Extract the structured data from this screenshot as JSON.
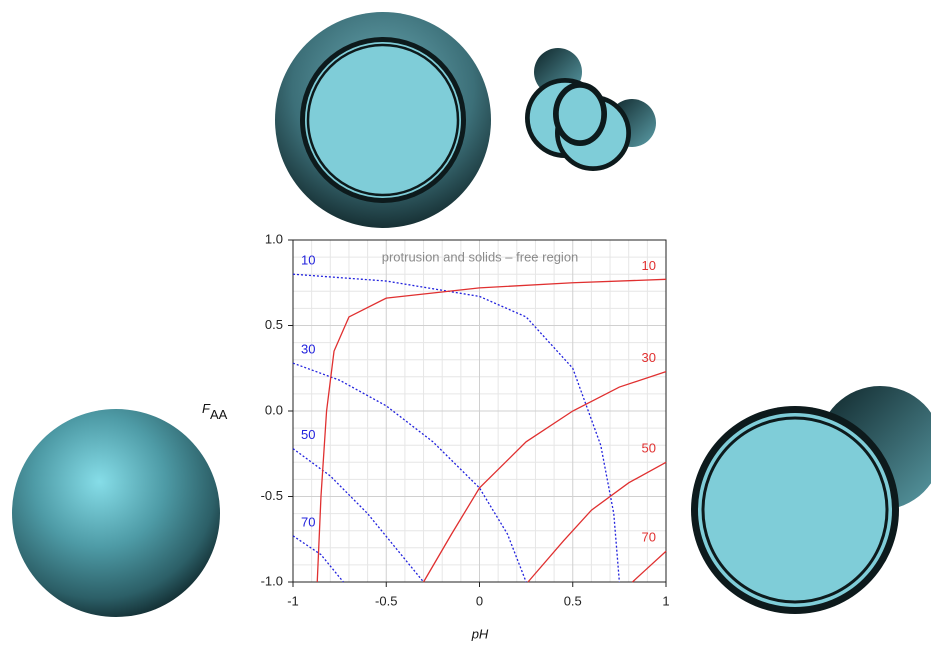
{
  "chart_data": {
    "type": "line",
    "x_label": "pH",
    "y_label_parts": [
      "F",
      "AA"
    ],
    "annotation": "protrusion and solids – free region",
    "xlim": [
      -1,
      1
    ],
    "xticks": [
      -1,
      -0.5,
      0,
      0.5,
      1
    ],
    "ylim": [
      -1,
      1
    ],
    "yticks": [
      {
        "value": -1,
        "label": "-1.0"
      },
      {
        "value": -0.5,
        "label": "-0.5"
      },
      {
        "value": 0,
        "label": "0.0"
      },
      {
        "value": 0.5,
        "label": "0.5"
      },
      {
        "value": 1,
        "label": "1.0"
      }
    ],
    "grid": true,
    "series": [
      {
        "name": "10",
        "color": "#2222dd",
        "style": "dotted",
        "x": [
          -1,
          -0.5,
          0,
          0.25,
          0.5,
          0.65,
          0.72,
          0.75
        ],
        "values": [
          0.8,
          0.76,
          0.67,
          0.55,
          0.25,
          -0.2,
          -0.6,
          -1
        ]
      },
      {
        "name": "30",
        "color": "#2222dd",
        "style": "dotted",
        "x": [
          -1,
          -0.75,
          -0.5,
          -0.25,
          0,
          0.15,
          0.25
        ],
        "values": [
          0.28,
          0.18,
          0.03,
          -0.18,
          -0.45,
          -0.72,
          -1
        ]
      },
      {
        "name": "50",
        "color": "#2222dd",
        "style": "dotted",
        "x": [
          -1,
          -0.8,
          -0.6,
          -0.45,
          -0.3
        ],
        "values": [
          -0.22,
          -0.38,
          -0.6,
          -0.8,
          -1
        ]
      },
      {
        "name": "70",
        "color": "#2222dd",
        "style": "dotted",
        "x": [
          -1,
          -0.85,
          -0.73
        ],
        "values": [
          -0.73,
          -0.84,
          -1
        ]
      },
      {
        "name": "10",
        "color": "#e03030",
        "style": "solid",
        "x": [
          -0.87,
          -0.85,
          -0.82,
          -0.78,
          -0.7,
          -0.5,
          0,
          0.5,
          1
        ],
        "values": [
          -1,
          -0.5,
          0,
          0.35,
          0.55,
          0.66,
          0.72,
          0.75,
          0.77
        ]
      },
      {
        "name": "30",
        "color": "#e03030",
        "style": "solid",
        "x": [
          -0.3,
          -0.15,
          0,
          0.25,
          0.5,
          0.75,
          1
        ],
        "values": [
          -1,
          -0.72,
          -0.45,
          -0.18,
          0,
          0.14,
          0.23
        ]
      },
      {
        "name": "50",
        "color": "#e03030",
        "style": "solid",
        "x": [
          0.26,
          0.45,
          0.6,
          0.8,
          1
        ],
        "values": [
          -1,
          -0.76,
          -0.58,
          -0.42,
          -0.3
        ]
      },
      {
        "name": "70",
        "color": "#e03030",
        "style": "solid",
        "x": [
          0.82,
          0.9,
          1
        ],
        "values": [
          -1,
          -0.92,
          -0.82
        ]
      }
    ]
  }
}
